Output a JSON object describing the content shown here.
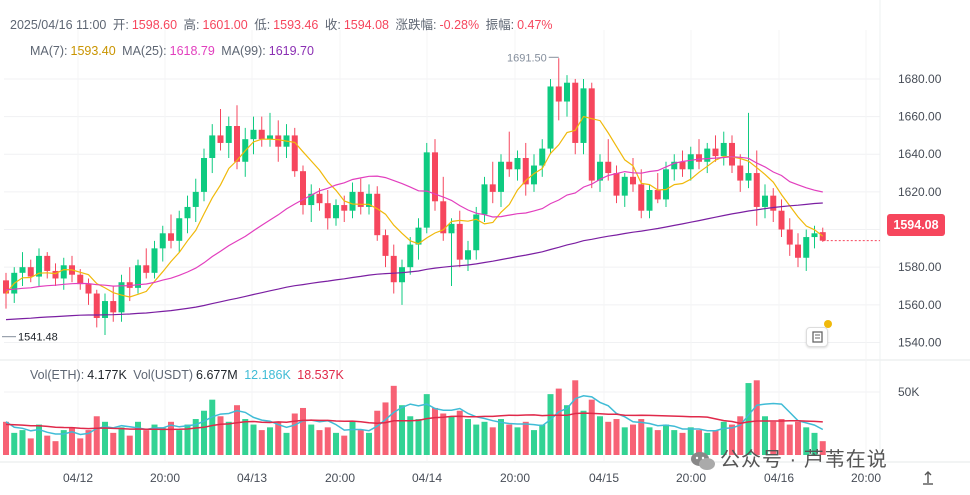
{
  "header": {
    "datetime": "2025/04/16 11:00",
    "open_label": "开:",
    "open": "1598.60",
    "high_label": "高:",
    "high": "1601.00",
    "low_label": "低:",
    "low": "1593.46",
    "close_label": "收:",
    "close": "1594.08",
    "change_label": "涨跌幅:",
    "change": "-0.28%",
    "amp_label": "振幅:",
    "amp": "0.47%"
  },
  "ma": {
    "ma7_label": "MA(7):",
    "ma7": "1593.40",
    "ma25_label": "MA(25):",
    "ma25": "1618.79",
    "ma99_label": "MA(99):",
    "ma99": "1619.70"
  },
  "vol_header": {
    "vol_eth_label": "Vol(ETH):",
    "vol_eth": "4.177K",
    "vol_usdt_label": "Vol(USDT)",
    "vol_usdt": "6.677M",
    "vol_ma20": "12.186K",
    "vol_ma99": "18.537K"
  },
  "price_tag": "1594.08",
  "watermark": "公众号 · 芦苇在说",
  "colors": {
    "up": "#0ecb81",
    "down": "#f6465d",
    "ma7": "#f0b90b",
    "ma25": "#e23fbe",
    "ma99": "#7b1fa2",
    "vol_ma20": "#40bcd6",
    "vol_ma99": "#e0294a"
  },
  "chart_data": {
    "type": "candlestick",
    "interval": "1h",
    "price_axis": {
      "ticks": [
        "1680.00",
        "1660.00",
        "1640.00",
        "1620.00",
        "1600.00",
        "1580.00",
        "1560.00",
        "1540.00"
      ],
      "ylim": [
        1536,
        1706
      ]
    },
    "volume_axis": {
      "ticks": [
        "50K"
      ]
    },
    "x_ticks": [
      "04/12",
      "20:00",
      "04/13",
      "20:00",
      "04/14",
      "20:00",
      "04/15",
      "20:00",
      "04/16",
      "20:00"
    ],
    "annotations": {
      "max": "1691.50",
      "min": "1541.48"
    },
    "candles": [
      [
        1573,
        1577,
        1558,
        1566,
        12
      ],
      [
        1566,
        1580,
        1561,
        1577,
        8
      ],
      [
        1577,
        1588,
        1570,
        1580,
        9
      ],
      [
        1580,
        1584,
        1572,
        1575,
        6
      ],
      [
        1575,
        1590,
        1570,
        1586,
        11
      ],
      [
        1586,
        1588,
        1574,
        1578,
        7
      ],
      [
        1578,
        1582,
        1570,
        1574,
        5
      ],
      [
        1574,
        1585,
        1568,
        1581,
        9
      ],
      [
        1581,
        1586,
        1572,
        1576,
        10
      ],
      [
        1576,
        1579,
        1568,
        1571,
        6
      ],
      [
        1571,
        1574,
        1560,
        1566,
        9
      ],
      [
        1566,
        1568,
        1548,
        1553,
        14
      ],
      [
        1553,
        1566,
        1544,
        1562,
        12
      ],
      [
        1562,
        1570,
        1551,
        1556,
        8
      ],
      [
        1556,
        1576,
        1551,
        1572,
        10
      ],
      [
        1572,
        1580,
        1562,
        1569,
        7
      ],
      [
        1569,
        1584,
        1566,
        1581,
        12
      ],
      [
        1581,
        1590,
        1574,
        1577,
        9
      ],
      [
        1577,
        1594,
        1574,
        1590,
        11
      ],
      [
        1590,
        1602,
        1583,
        1598,
        10
      ],
      [
        1598,
        1608,
        1590,
        1594,
        12
      ],
      [
        1594,
        1610,
        1588,
        1606,
        9
      ],
      [
        1606,
        1618,
        1598,
        1612,
        11
      ],
      [
        1612,
        1627,
        1604,
        1620,
        13
      ],
      [
        1620,
        1643,
        1615,
        1638,
        16
      ],
      [
        1638,
        1656,
        1630,
        1650,
        20
      ],
      [
        1650,
        1664,
        1642,
        1646,
        14
      ],
      [
        1646,
        1660,
        1638,
        1655,
        12
      ],
      [
        1655,
        1666,
        1632,
        1636,
        18
      ],
      [
        1636,
        1654,
        1628,
        1648,
        13
      ],
      [
        1648,
        1660,
        1640,
        1653,
        11
      ],
      [
        1653,
        1660,
        1644,
        1648,
        9
      ],
      [
        1648,
        1662,
        1644,
        1650,
        10
      ],
      [
        1650,
        1658,
        1636,
        1644,
        12
      ],
      [
        1644,
        1656,
        1638,
        1650,
        8
      ],
      [
        1650,
        1654,
        1628,
        1631,
        15
      ],
      [
        1631,
        1634,
        1608,
        1613,
        17
      ],
      [
        1613,
        1624,
        1604,
        1619,
        11
      ],
      [
        1619,
        1622,
        1610,
        1614,
        9
      ],
      [
        1614,
        1621,
        1600,
        1606,
        10
      ],
      [
        1606,
        1616,
        1602,
        1613,
        8
      ],
      [
        1613,
        1618,
        1604,
        1610,
        7
      ],
      [
        1610,
        1625,
        1606,
        1620,
        12
      ],
      [
        1620,
        1627,
        1608,
        1612,
        9
      ],
      [
        1612,
        1624,
        1608,
        1619,
        8
      ],
      [
        1619,
        1623,
        1594,
        1597,
        16
      ],
      [
        1597,
        1600,
        1580,
        1586,
        19
      ],
      [
        1586,
        1592,
        1566,
        1572,
        25
      ],
      [
        1572,
        1584,
        1560,
        1580,
        18
      ],
      [
        1580,
        1596,
        1576,
        1592,
        14
      ],
      [
        1592,
        1606,
        1584,
        1601,
        13
      ],
      [
        1601,
        1646,
        1598,
        1641,
        22
      ],
      [
        1641,
        1648,
        1610,
        1615,
        17
      ],
      [
        1615,
        1628,
        1594,
        1598,
        15
      ],
      [
        1598,
        1606,
        1570,
        1603,
        14
      ],
      [
        1603,
        1610,
        1580,
        1584,
        16
      ],
      [
        1584,
        1594,
        1578,
        1589,
        13
      ],
      [
        1589,
        1612,
        1584,
        1608,
        11
      ],
      [
        1608,
        1628,
        1604,
        1624,
        12
      ],
      [
        1624,
        1636,
        1614,
        1620,
        10
      ],
      [
        1620,
        1640,
        1612,
        1636,
        13
      ],
      [
        1636,
        1652,
        1628,
        1632,
        11
      ],
      [
        1632,
        1642,
        1626,
        1638,
        10
      ],
      [
        1638,
        1646,
        1618,
        1624,
        12
      ],
      [
        1624,
        1640,
        1620,
        1634,
        9
      ],
      [
        1634,
        1648,
        1628,
        1643,
        11
      ],
      [
        1643,
        1680,
        1640,
        1676,
        22
      ],
      [
        1676,
        1691,
        1658,
        1668,
        24
      ],
      [
        1668,
        1682,
        1660,
        1678,
        18
      ],
      [
        1678,
        1680,
        1640,
        1646,
        27
      ],
      [
        1646,
        1680,
        1640,
        1675,
        16
      ],
      [
        1675,
        1678,
        1622,
        1626,
        20
      ],
      [
        1626,
        1640,
        1620,
        1636,
        14
      ],
      [
        1636,
        1648,
        1626,
        1630,
        12
      ],
      [
        1630,
        1634,
        1614,
        1618,
        13
      ],
      [
        1618,
        1630,
        1612,
        1628,
        10
      ],
      [
        1628,
        1638,
        1620,
        1624,
        11
      ],
      [
        1624,
        1632,
        1606,
        1610,
        13
      ],
      [
        1610,
        1624,
        1606,
        1621,
        10
      ],
      [
        1621,
        1630,
        1614,
        1616,
        9
      ],
      [
        1616,
        1636,
        1612,
        1632,
        11
      ],
      [
        1632,
        1640,
        1626,
        1636,
        9
      ],
      [
        1636,
        1642,
        1628,
        1632,
        8
      ],
      [
        1632,
        1644,
        1626,
        1640,
        10
      ],
      [
        1640,
        1648,
        1632,
        1636,
        9
      ],
      [
        1636,
        1646,
        1630,
        1643,
        8
      ],
      [
        1643,
        1650,
        1636,
        1639,
        9
      ],
      [
        1639,
        1652,
        1634,
        1646,
        12
      ],
      [
        1646,
        1650,
        1630,
        1634,
        11
      ],
      [
        1634,
        1640,
        1620,
        1626,
        14
      ],
      [
        1626,
        1662,
        1622,
        1630,
        26
      ],
      [
        1630,
        1642,
        1602,
        1612,
        27
      ],
      [
        1612,
        1624,
        1606,
        1618,
        14
      ],
      [
        1618,
        1622,
        1604,
        1610,
        12
      ],
      [
        1610,
        1616,
        1596,
        1600,
        13
      ],
      [
        1600,
        1606,
        1586,
        1592,
        11
      ],
      [
        1592,
        1598,
        1580,
        1585,
        12
      ],
      [
        1585,
        1600,
        1578,
        1596,
        10
      ],
      [
        1596,
        1602,
        1590,
        1598,
        8
      ],
      [
        1598.6,
        1601,
        1593.46,
        1594.08,
        5
      ]
    ]
  }
}
